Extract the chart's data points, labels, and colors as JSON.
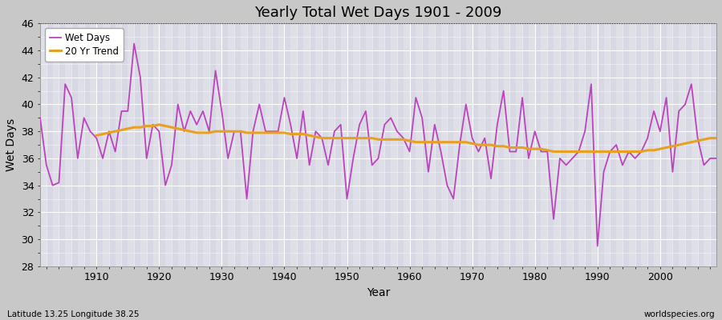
{
  "title": "Yearly Total Wet Days 1901 - 2009",
  "xlabel": "Year",
  "ylabel": "Wet Days",
  "lat_lon_label": "Latitude 13.25 Longitude 38.25",
  "source_label": "worldspecies.org",
  "ylim": [
    28,
    46
  ],
  "yticks": [
    28,
    30,
    32,
    34,
    36,
    38,
    40,
    42,
    44,
    46
  ],
  "xlim": [
    1901,
    2009
  ],
  "xticks": [
    1910,
    1920,
    1930,
    1940,
    1950,
    1960,
    1970,
    1980,
    1990,
    2000
  ],
  "wet_days_color": "#bb44bb",
  "trend_color": "#e8a020",
  "fig_bg_color": "#c8c8c8",
  "plot_bg_color": "#d8d8e4",
  "years": [
    1901,
    1902,
    1903,
    1904,
    1905,
    1906,
    1907,
    1908,
    1909,
    1910,
    1911,
    1912,
    1913,
    1914,
    1915,
    1916,
    1917,
    1918,
    1919,
    1920,
    1921,
    1922,
    1923,
    1924,
    1925,
    1926,
    1927,
    1928,
    1929,
    1930,
    1931,
    1932,
    1933,
    1934,
    1935,
    1936,
    1937,
    1938,
    1939,
    1940,
    1941,
    1942,
    1943,
    1944,
    1945,
    1946,
    1947,
    1948,
    1949,
    1950,
    1951,
    1952,
    1953,
    1954,
    1955,
    1956,
    1957,
    1958,
    1959,
    1960,
    1961,
    1962,
    1963,
    1964,
    1965,
    1966,
    1967,
    1968,
    1969,
    1970,
    1971,
    1972,
    1973,
    1974,
    1975,
    1976,
    1977,
    1978,
    1979,
    1980,
    1981,
    1982,
    1983,
    1984,
    1985,
    1986,
    1987,
    1988,
    1989,
    1990,
    1991,
    1992,
    1993,
    1994,
    1995,
    1996,
    1997,
    1998,
    1999,
    2000,
    2001,
    2002,
    2003,
    2004,
    2005,
    2006,
    2007,
    2008,
    2009
  ],
  "wet_days": [
    39.0,
    35.5,
    34.0,
    34.2,
    41.5,
    40.5,
    36.0,
    39.0,
    38.0,
    37.5,
    36.0,
    38.0,
    36.5,
    39.5,
    39.5,
    44.5,
    42.0,
    36.0,
    38.5,
    38.0,
    34.0,
    35.5,
    40.0,
    38.0,
    39.5,
    38.5,
    39.5,
    38.0,
    42.5,
    39.5,
    36.0,
    38.0,
    38.0,
    33.0,
    38.0,
    40.0,
    38.0,
    38.0,
    38.0,
    40.5,
    38.5,
    36.0,
    39.5,
    35.5,
    38.0,
    37.5,
    35.5,
    38.0,
    38.5,
    33.0,
    36.0,
    38.5,
    39.5,
    35.5,
    36.0,
    38.5,
    39.0,
    38.0,
    37.5,
    36.5,
    40.5,
    39.0,
    35.0,
    38.5,
    36.5,
    34.0,
    33.0,
    37.0,
    40.0,
    37.5,
    36.5,
    37.5,
    34.5,
    38.5,
    41.0,
    36.5,
    36.5,
    40.5,
    36.0,
    38.0,
    36.5,
    36.5,
    31.5,
    36.0,
    35.5,
    36.0,
    36.5,
    38.0,
    41.5,
    29.5,
    35.0,
    36.5,
    37.0,
    35.5,
    36.5,
    36.0,
    36.5,
    37.5,
    39.5,
    38.0,
    40.5,
    35.0,
    39.5,
    40.0,
    41.5,
    37.5,
    35.5,
    36.0,
    36.0
  ],
  "trend_years": [
    1910,
    1911,
    1912,
    1913,
    1914,
    1915,
    1916,
    1917,
    1918,
    1919,
    1920,
    1921,
    1922,
    1923,
    1924,
    1925,
    1926,
    1927,
    1928,
    1929,
    1930,
    1931,
    1932,
    1933,
    1934,
    1935,
    1936,
    1937,
    1938,
    1939,
    1940,
    1941,
    1942,
    1943,
    1944,
    1945,
    1946,
    1947,
    1948,
    1949,
    1950,
    1951,
    1952,
    1953,
    1954,
    1955,
    1956,
    1957,
    1958,
    1959,
    1960,
    1961,
    1962,
    1963,
    1964,
    1965,
    1966,
    1967,
    1968,
    1969,
    1970,
    1971,
    1972,
    1973,
    1974,
    1975,
    1976,
    1977,
    1978,
    1979,
    1980,
    1981,
    1982,
    1983,
    1984,
    1985,
    1986,
    1987,
    1988,
    1989,
    1990,
    1991,
    1992,
    1993,
    1994,
    1995,
    1996,
    1997,
    1998,
    1999,
    2000,
    2001,
    2002,
    2003,
    2004,
    2005,
    2006,
    2007,
    2008,
    2009
  ],
  "trend_values": [
    37.7,
    37.8,
    37.9,
    38.0,
    38.1,
    38.2,
    38.3,
    38.3,
    38.4,
    38.4,
    38.5,
    38.4,
    38.3,
    38.2,
    38.1,
    38.0,
    37.9,
    37.9,
    37.9,
    38.0,
    38.0,
    38.0,
    38.0,
    38.0,
    37.9,
    37.9,
    37.9,
    37.9,
    37.9,
    37.9,
    37.9,
    37.8,
    37.8,
    37.8,
    37.7,
    37.6,
    37.5,
    37.5,
    37.5,
    37.5,
    37.5,
    37.5,
    37.5,
    37.5,
    37.5,
    37.4,
    37.4,
    37.4,
    37.4,
    37.4,
    37.3,
    37.2,
    37.2,
    37.2,
    37.2,
    37.2,
    37.2,
    37.2,
    37.2,
    37.2,
    37.1,
    37.0,
    37.0,
    37.0,
    36.9,
    36.9,
    36.8,
    36.8,
    36.8,
    36.7,
    36.7,
    36.7,
    36.6,
    36.5,
    36.5,
    36.5,
    36.5,
    36.5,
    36.5,
    36.5,
    36.5,
    36.5,
    36.5,
    36.5,
    36.5,
    36.5,
    36.5,
    36.5,
    36.6,
    36.6,
    36.7,
    36.8,
    36.9,
    37.0,
    37.1,
    37.2,
    37.3,
    37.4,
    37.5,
    37.5
  ]
}
